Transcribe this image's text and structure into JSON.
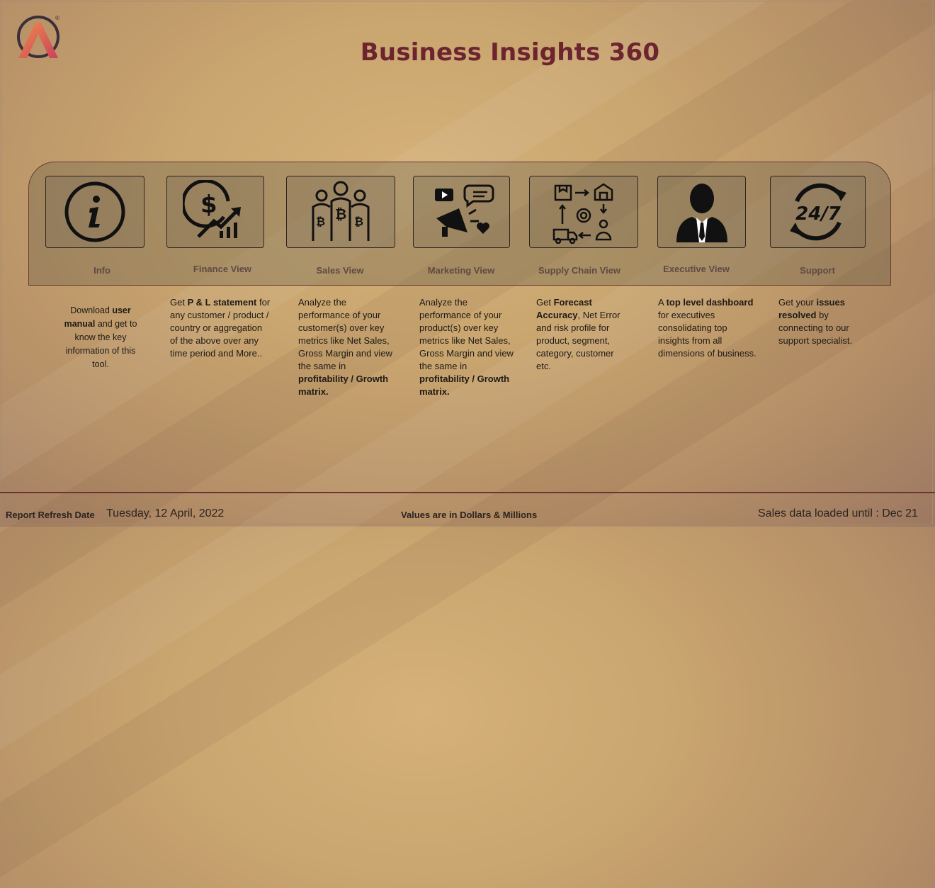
{
  "header": {
    "title": "Business Insights 360"
  },
  "nav": [
    {
      "label": "Info",
      "icon": "info-icon"
    },
    {
      "label": "Finance View",
      "icon": "dollar-growth-icon"
    },
    {
      "label": "Sales View",
      "icon": "bitcoin-people-icon"
    },
    {
      "label": "Marketing View",
      "icon": "megaphone-icon"
    },
    {
      "label": "Supply Chain View",
      "icon": "supply-chain-icon"
    },
    {
      "label": "Executive View",
      "icon": "executive-icon"
    },
    {
      "label": "Support",
      "icon": "support-24-7-icon"
    }
  ],
  "descriptions": {
    "info": {
      "t1": "Download ",
      "b1": "user manual",
      "t2": " and get to know the key information of this tool."
    },
    "finance": {
      "t1": "Get  ",
      "b1": "P & L statement",
      "t2": " for any customer / product / country or aggregation of the above over any time period and More.."
    },
    "sales": {
      "t1": "Analyze the performance of your customer(s) over key metrics like Net Sales, Gross Margin and view the same in ",
      "b1": "profitability / Growth matrix."
    },
    "marketing": {
      "t1": "Analyze the performance of your product(s) over key metrics like Net Sales, Gross Margin and view the same in ",
      "b1": "profitability / Growth matrix."
    },
    "supply": {
      "t1": "Get ",
      "b1": "Forecast Accuracy",
      "t2": ", Net Error and risk profile for product, segment, category, customer etc."
    },
    "executive": {
      "t1": "A ",
      "b1": "top level dashboard",
      "t2": " for executives consolidating top insights from all dimensions of business."
    },
    "support": {
      "t1": "Get your ",
      "b1": "issues resolved",
      "t2": " by connecting to our support specialist."
    }
  },
  "footer": {
    "refresh_label": "Report Refresh Date",
    "refresh_date": "Tuesday, 12 April, 2022",
    "values_note": "Values are in Dollars & Millions",
    "loaded_until": "Sales data loaded until : Dec 21"
  },
  "colors": {
    "title": "#6b2430",
    "footer_line": "#6b3434",
    "logo_orange": "#e8734a",
    "logo_dark": "#3b2f3a"
  }
}
